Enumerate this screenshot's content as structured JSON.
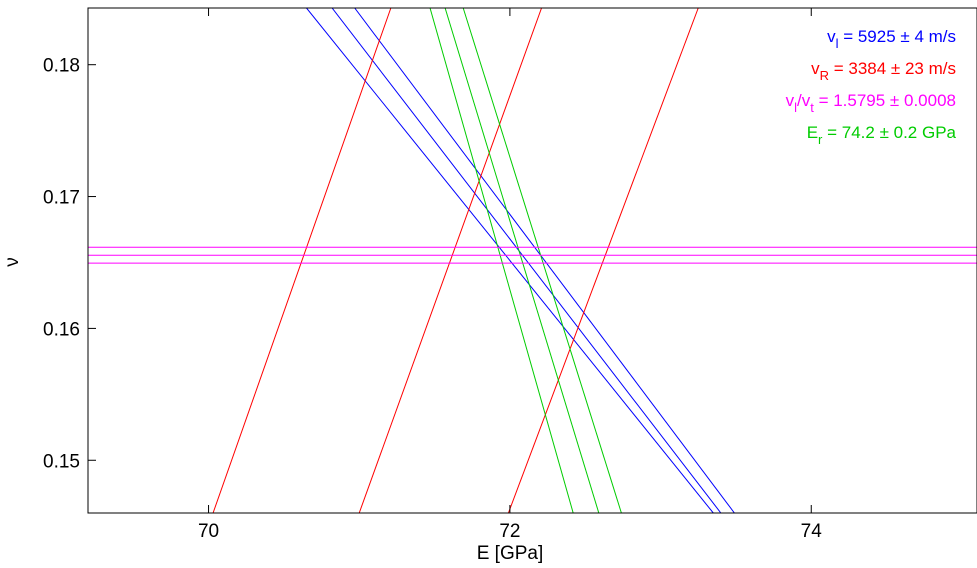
{
  "chart_data": {
    "type": "line",
    "title": "",
    "xlabel": "E  [GPa]",
    "ylabel": "ν",
    "xlim": [
      69.2,
      75.1
    ],
    "ylim": [
      0.146,
      0.1843
    ],
    "xticks": [
      70,
      72,
      74
    ],
    "xtick_labels": [
      "70",
      "72",
      "74"
    ],
    "yticks": [
      0.15,
      0.16,
      0.17,
      0.18
    ],
    "ytick_labels": [
      "0.15",
      "0.16",
      "0.17",
      "0.18"
    ],
    "grid": false,
    "legend": {
      "placement": "top-right",
      "entries": [
        {
          "color": "#0000ff",
          "main": "v",
          "sub": "l",
          "text": " = 5925 ± 4  m/s"
        },
        {
          "color": "#ff0000",
          "main": "v",
          "sub": "R",
          "text": " = 3384 ± 23  m/s"
        },
        {
          "color": "#ff00ff",
          "main": "v",
          "sub": "l",
          "mid": "/v",
          "sub2": "t",
          "text": " = 1.5795 ± 0.0008"
        },
        {
          "color": "#00cc00",
          "main": "E",
          "sub": "r",
          "text": " = 74.2 ± 0.2  GPa"
        }
      ]
    },
    "series": [
      {
        "color": "#0000ff",
        "x": [
          70.65,
          73.35
        ],
        "y": [
          0.1843,
          0.146
        ]
      },
      {
        "color": "#0000ff",
        "x": [
          70.82,
          73.4
        ],
        "y": [
          0.1843,
          0.146
        ]
      },
      {
        "color": "#0000ff",
        "x": [
          70.97,
          73.49
        ],
        "y": [
          0.1843,
          0.146
        ]
      },
      {
        "color": "#ff0000",
        "x": [
          70.03,
          71.21
        ],
        "y": [
          0.146,
          0.1843
        ]
      },
      {
        "color": "#ff0000",
        "x": [
          71.0,
          72.21
        ],
        "y": [
          0.146,
          0.1843
        ]
      },
      {
        "color": "#ff0000",
        "x": [
          71.99,
          73.25
        ],
        "y": [
          0.146,
          0.1843
        ]
      },
      {
        "color": "#00cc00",
        "x": [
          71.47,
          72.42
        ],
        "y": [
          0.1843,
          0.146
        ]
      },
      {
        "color": "#00cc00",
        "x": [
          71.57,
          72.59
        ],
        "y": [
          0.1843,
          0.146
        ]
      },
      {
        "color": "#00cc00",
        "x": [
          71.69,
          72.74
        ],
        "y": [
          0.1843,
          0.146
        ]
      },
      {
        "color": "#ff00ff",
        "x": [
          69.2,
          75.1
        ],
        "y": [
          0.16615,
          0.16615
        ]
      },
      {
        "color": "#ff00ff",
        "x": [
          69.2,
          75.1
        ],
        "y": [
          0.16555,
          0.16555
        ]
      },
      {
        "color": "#ff00ff",
        "x": [
          69.2,
          75.1
        ],
        "y": [
          0.16495,
          0.16495
        ]
      }
    ]
  }
}
